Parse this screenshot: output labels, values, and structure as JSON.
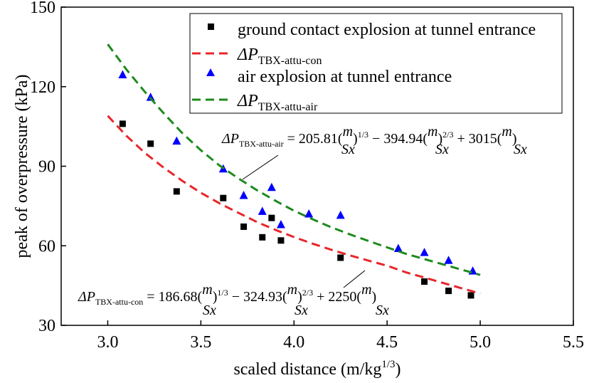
{
  "chart_data": {
    "type": "scatter",
    "xlabel_main": "scaled distance (m/kg",
    "xlabel_sup": "1/3",
    "xlabel_end": ")",
    "ylabel": "peak of overpressure (kPa)",
    "xlim": [
      2.75,
      5.5
    ],
    "ylim": [
      30,
      150
    ],
    "xticks": [
      "3.0",
      "3.5",
      "4.0",
      "4.5",
      "5.0",
      "5.5"
    ],
    "xtick_values": [
      3.0,
      3.5,
      4.0,
      4.5,
      5.0,
      5.5
    ],
    "yticks": [
      "30",
      "60",
      "90",
      "120",
      "150"
    ],
    "ytick_values": [
      30,
      60,
      90,
      120,
      150
    ],
    "legend_position": "top-right",
    "series": [
      {
        "name": "ground contact explosion at tunnel entrance",
        "kind": "points",
        "marker": "square",
        "color": "#000000",
        "x": [
          3.08,
          3.23,
          3.37,
          3.62,
          3.73,
          3.83,
          3.88,
          3.93,
          4.25,
          4.7,
          4.83,
          4.95
        ],
        "y": [
          106,
          98.5,
          80.5,
          78,
          67.2,
          63.2,
          70.5,
          62,
          55.5,
          46.5,
          43,
          41.3
        ]
      },
      {
        "name_main": "ΔP",
        "name_sub": "TBX-attu-con",
        "kind": "fit",
        "color": "#e8262a",
        "x": [
          3.0,
          3.1,
          3.2,
          3.3,
          3.4,
          3.5,
          3.6,
          3.7,
          3.8,
          3.9,
          4.0,
          4.1,
          4.2,
          4.3,
          4.4,
          4.5,
          4.6,
          4.7,
          4.8,
          4.9,
          5.0
        ],
        "y": [
          109,
          101.5,
          95,
          89.5,
          84.5,
          80,
          76,
          72.5,
          69,
          66,
          63.3,
          60.8,
          58.5,
          56.4,
          54.4,
          52.5,
          50,
          48,
          46,
          44,
          42
        ]
      },
      {
        "name": "air explosion at tunnel entrance",
        "kind": "points",
        "marker": "triangle",
        "color": "#0000ff",
        "x": [
          3.08,
          3.23,
          3.37,
          3.62,
          3.73,
          3.83,
          3.88,
          3.93,
          4.08,
          4.25,
          4.56,
          4.7,
          4.83,
          4.96
        ],
        "y": [
          124.5,
          116,
          99.5,
          89,
          79,
          73,
          82,
          68,
          72,
          71.5,
          59,
          57.5,
          54.5,
          50.5
        ]
      },
      {
        "name_main": "ΔP",
        "name_sub": "TBX-attu-air",
        "kind": "fit",
        "color": "#1d8a1d",
        "x": [
          3.0,
          3.1,
          3.2,
          3.3,
          3.4,
          3.5,
          3.6,
          3.7,
          3.8,
          3.9,
          4.0,
          4.1,
          4.2,
          4.3,
          4.4,
          4.5,
          4.6,
          4.7,
          4.8,
          4.9,
          5.0
        ],
        "y": [
          136,
          126.5,
          118,
          110,
          102.5,
          96,
          90.3,
          85.5,
          81,
          77,
          73.2,
          70,
          67,
          64.3,
          61.8,
          59.4,
          57,
          55,
          53,
          51,
          49
        ]
      }
    ],
    "annotations": {
      "air": {
        "lhs_main": "ΔP",
        "lhs_sub": "TBX-attu-air",
        "c1": "205.81",
        "c2": "394.94",
        "c3": "3015",
        "frac_num": "m",
        "frac_den": "Sx",
        "exp1": "1/3",
        "exp2": "2/3"
      },
      "con": {
        "lhs_main": "ΔP",
        "lhs_sub": "TBX-attu-con",
        "c1": "186.68",
        "c2": "324.93",
        "c3": "2250",
        "frac_num": "m",
        "frac_den": "Sx",
        "exp1": "1/3",
        "exp2": "2/3"
      }
    }
  }
}
